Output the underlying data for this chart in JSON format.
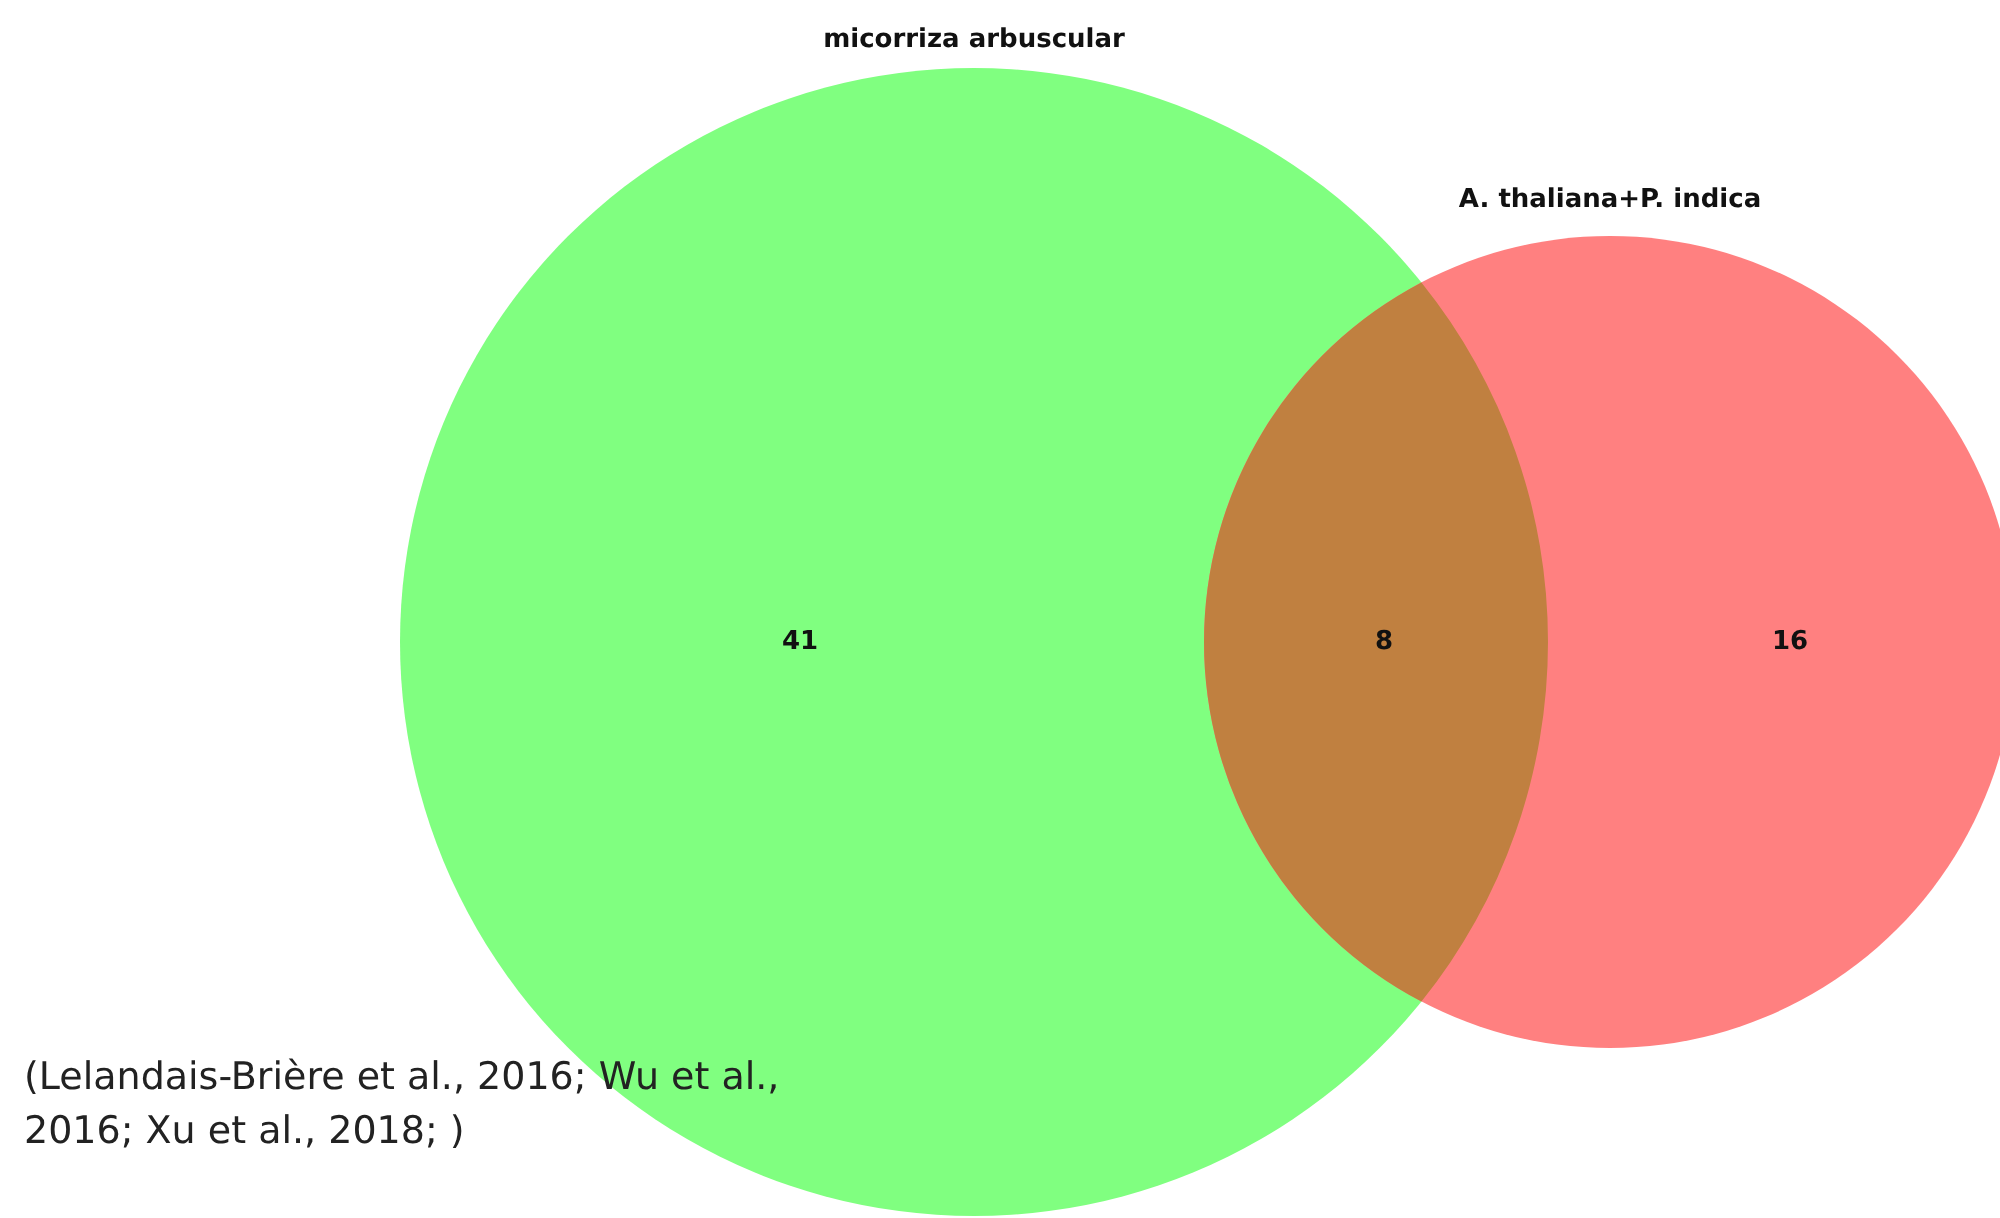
{
  "chart_data": {
    "type": "other",
    "categories": [
      "micorriza arbuscular",
      null,
      "A. thaliana+P. indica"
    ],
    "values": [
      41,
      8,
      16
    ],
    "data_labels": true,
    "colors": [
      "#80ff80",
      "#c08040",
      "#ff8080"
    ],
    "annotations": [
      "(Lelandais-Brière et al., 2016; Wu et al.,\n2016; Xu et al., 2018; )"
    ]
  }
}
